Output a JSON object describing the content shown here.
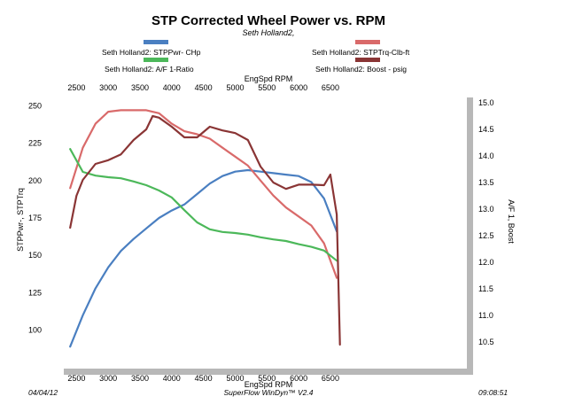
{
  "chart_data": {
    "type": "line",
    "title": "STP Corrected Wheel Power vs. RPM",
    "subtitle": "Seth Holland2,",
    "xlabel": "EngSpd  RPM",
    "ylabel_left": "STPPwr-, STPTrq",
    "ylabel_right": "A/F 1, Boost",
    "xlim": [
      2300,
      8650
    ],
    "ylim_left": [
      85,
      252
    ],
    "ylim_right": [
      10.3,
      15.0
    ],
    "x_ticks": [
      "2500",
      "3000",
      "3500",
      "4000",
      "4500",
      "5000",
      "5500",
      "6000",
      "6500"
    ],
    "y_left_ticks": [
      "100",
      "125",
      "150",
      "175",
      "200",
      "225",
      "250"
    ],
    "y_right_ticks": [
      "10.5",
      "11.0",
      "11.5",
      "12.0",
      "12.5",
      "13.0",
      "13.5",
      "14.0",
      "14.5",
      "15.0"
    ],
    "grid": false,
    "legend": [
      {
        "label": "Seth Holland2:  STPPwr- CHp",
        "color": "#4a7fc1",
        "position": "top-left"
      },
      {
        "label": "Seth Holland2:  STPTrq-Clb-ft",
        "color": "#d96a6a",
        "position": "top-right"
      },
      {
        "label": "Seth Holland2:  A/F 1-Ratio",
        "color": "#4cb85a",
        "position": "top-left"
      },
      {
        "label": "Seth Holland2:  Boost - psig",
        "color": "#8a3535",
        "position": "top-right"
      }
    ],
    "series": [
      {
        "name": "Seth Holland2:  STPPwr- CHp",
        "axis": "left",
        "color": "#4a7fc1",
        "x": [
          2400,
          2600,
          2800,
          3000,
          3200,
          3400,
          3600,
          3800,
          4000,
          4200,
          4400,
          4600,
          4800,
          5000,
          5200,
          5400,
          5600,
          5800,
          6000,
          6200,
          6400,
          6600
        ],
        "values": [
          89,
          110,
          128,
          142,
          153,
          161,
          168,
          175,
          180,
          184,
          191,
          198,
          203,
          206,
          207,
          206,
          205,
          204,
          203,
          199,
          188,
          166
        ]
      },
      {
        "name": "Seth Holland2:  STPTrq-Clb-ft",
        "axis": "left",
        "color": "#d96a6a",
        "x": [
          2400,
          2600,
          2800,
          3000,
          3200,
          3400,
          3600,
          3800,
          4000,
          4200,
          4400,
          4600,
          4800,
          5000,
          5200,
          5400,
          5600,
          5800,
          6000,
          6200,
          6400,
          6600
        ],
        "values": [
          195,
          222,
          238,
          246,
          247,
          247,
          247,
          245,
          238,
          233,
          231,
          228,
          222,
          216,
          210,
          200,
          190,
          182,
          176,
          170,
          158,
          135
        ]
      },
      {
        "name": "Seth Holland2:  A/F 1-Ratio",
        "axis": "right",
        "color": "#4cb85a",
        "x": [
          2400,
          2600,
          2800,
          3000,
          3200,
          3400,
          3600,
          3800,
          4000,
          4200,
          4400,
          4600,
          4800,
          5000,
          5200,
          5400,
          5600,
          5800,
          6000,
          6200,
          6400,
          6600
        ],
        "values": [
          14.13,
          13.7,
          13.63,
          13.6,
          13.58,
          13.52,
          13.45,
          13.35,
          13.22,
          12.98,
          12.75,
          12.62,
          12.57,
          12.55,
          12.52,
          12.47,
          12.43,
          12.4,
          12.34,
          12.29,
          12.22,
          12.03
        ]
      },
      {
        "name": "Seth Holland2:  Boost - psig",
        "axis": "right",
        "color": "#8a3535",
        "x": [
          2400,
          2500,
          2600,
          2800,
          3000,
          3200,
          3400,
          3600,
          3700,
          3800,
          4000,
          4200,
          4400,
          4600,
          4800,
          5000,
          5200,
          5400,
          5600,
          5800,
          6000,
          6200,
          6400,
          6500,
          6600,
          6650
        ],
        "values": [
          12.65,
          13.25,
          13.55,
          13.85,
          13.92,
          14.03,
          14.3,
          14.5,
          14.75,
          14.72,
          14.55,
          14.35,
          14.35,
          14.55,
          14.48,
          14.43,
          14.3,
          13.8,
          13.5,
          13.38,
          13.46,
          13.46,
          13.45,
          13.65,
          12.9,
          10.45
        ]
      }
    ],
    "footer": {
      "date": "04/04/12",
      "software": "SuperFlow WinDyn™ V2.4",
      "time": "09:08:51"
    }
  }
}
